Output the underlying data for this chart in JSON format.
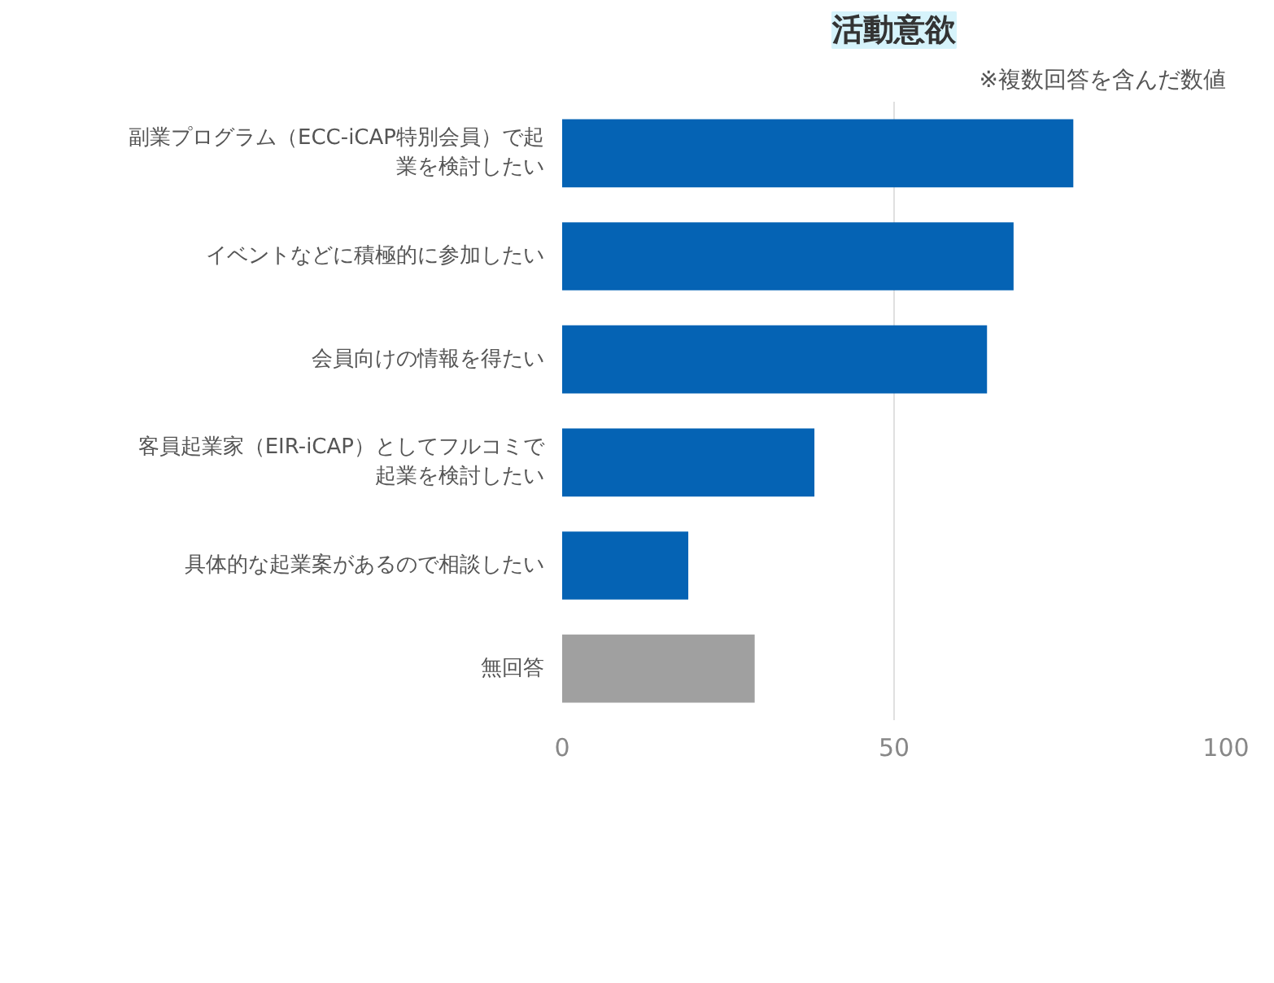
{
  "chart_data": {
    "type": "bar",
    "orientation": "horizontal",
    "title": "活動意欲",
    "annotations": [
      "※複数回答を含んだ数値"
    ],
    "categories": [
      "副業プログラム（ECC-iCAP特別会員）で起業を検討したい",
      "イベントなどに積極的に参加したい",
      "会員向けの情報を得たい",
      "客員起業家（EIR-iCAP）としてフルコミで起業を検討したい",
      "具体的な起業案があるので相談したい",
      "無回答"
    ],
    "values": [
      77,
      68,
      64,
      38,
      19,
      29
    ],
    "colors": [
      "#0563b4",
      "#0563b4",
      "#0563b4",
      "#0563b4",
      "#0563b4",
      "#a0a0a0"
    ],
    "xlim": [
      0,
      100
    ],
    "xticks": [
      0,
      50,
      100
    ],
    "grid": "x"
  }
}
